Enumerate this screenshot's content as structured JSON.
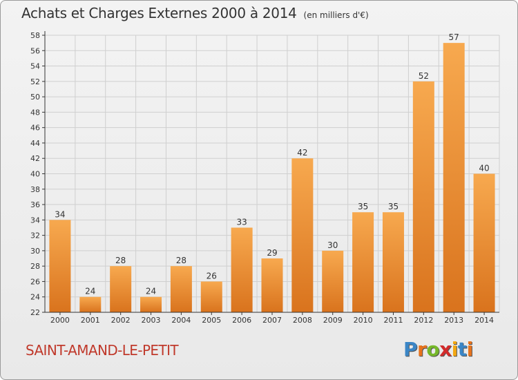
{
  "header": {
    "title": "Achats et Charges Externes 2000 à 2014",
    "subtitle": "(en milliers d'€)"
  },
  "commune": "SAINT-AMAND-LE-PETIT",
  "logo": {
    "letters": [
      "P",
      "r",
      "o",
      "x",
      "i",
      "t",
      "i"
    ],
    "colors": [
      "#3b86c6",
      "#e8731c",
      "#76b82a",
      "#d22b2b",
      "#f3a712",
      "#3b86c6",
      "#e8731c"
    ]
  },
  "chart_data": {
    "type": "bar",
    "categories": [
      "2000",
      "2001",
      "2002",
      "2003",
      "2004",
      "2005",
      "2006",
      "2007",
      "2008",
      "2009",
      "2010",
      "2011",
      "2012",
      "2013",
      "2014"
    ],
    "values": [
      34,
      24,
      28,
      24,
      28,
      26,
      33,
      29,
      42,
      30,
      35,
      35,
      52,
      57,
      40
    ],
    "ylim": [
      22,
      58
    ],
    "yticks": [
      22,
      24,
      26,
      28,
      30,
      32,
      34,
      36,
      38,
      40,
      42,
      44,
      46,
      48,
      50,
      52,
      54,
      56,
      58
    ],
    "grid": true,
    "colors": {
      "bar_light": "#f7a94f",
      "bar_dark": "#d9731d",
      "grid": "#cfcfcf",
      "axis": "#333333"
    }
  }
}
